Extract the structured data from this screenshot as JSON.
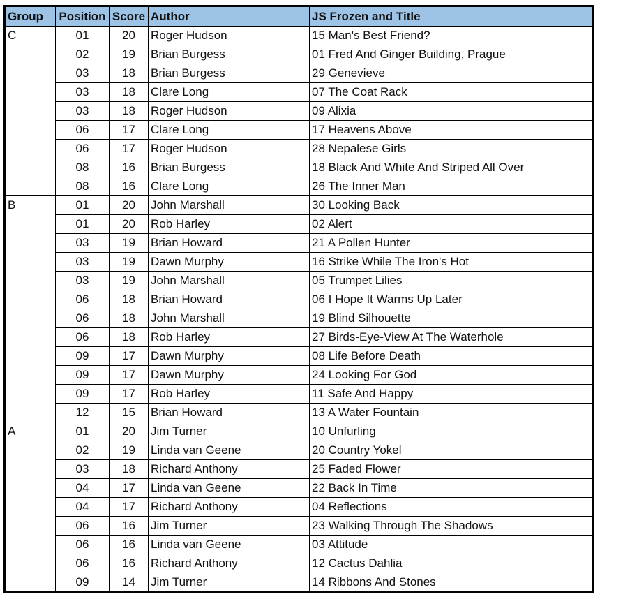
{
  "headers": [
    "Group",
    "Position",
    "Score",
    "Author",
    "JS Frozen and Title"
  ],
  "colors": {
    "header_bg": "#9dc3e6",
    "border": "#000000"
  },
  "groups": [
    {
      "group": "C",
      "rows": [
        [
          "01",
          "20",
          "Roger Hudson",
          "15 Man's Best Friend?"
        ],
        [
          "02",
          "19",
          "Brian Burgess",
          "01 Fred And Ginger Building, Prague"
        ],
        [
          "03",
          "18",
          "Brian Burgess",
          "29 Genevieve"
        ],
        [
          "03",
          "18",
          "Clare Long",
          "07 The Coat Rack"
        ],
        [
          "03",
          "18",
          "Roger Hudson",
          "09 Alixia"
        ],
        [
          "06",
          "17",
          "Clare Long",
          "17 Heavens Above"
        ],
        [
          "06",
          "17",
          "Roger Hudson",
          "28 Nepalese Girls"
        ],
        [
          "08",
          "16",
          "Brian Burgess",
          "18 Black And White And Striped All Over"
        ],
        [
          "08",
          "16",
          "Clare Long",
          "26 The Inner Man"
        ]
      ]
    },
    {
      "group": "B",
      "rows": [
        [
          "01",
          "20",
          "John Marshall",
          "30 Looking Back"
        ],
        [
          "01",
          "20",
          "Rob Harley",
          "02 Alert"
        ],
        [
          "03",
          "19",
          "Brian Howard",
          "21 A Pollen Hunter"
        ],
        [
          "03",
          "19",
          "Dawn Murphy",
          "16 Strike While The Iron's Hot"
        ],
        [
          "03",
          "19",
          "John Marshall",
          "05 Trumpet Lilies"
        ],
        [
          "06",
          "18",
          "Brian Howard",
          "06 I Hope It Warms Up Later"
        ],
        [
          "06",
          "18",
          "John Marshall",
          "19 Blind Silhouette"
        ],
        [
          "06",
          "18",
          "Rob Harley",
          "27 Birds-Eye-View At The Waterhole"
        ],
        [
          "09",
          "17",
          "Dawn Murphy",
          "08 Life Before Death"
        ],
        [
          "09",
          "17",
          "Dawn Murphy",
          "24 Looking For God"
        ],
        [
          "09",
          "17",
          "Rob Harley",
          "11 Safe And Happy"
        ],
        [
          "12",
          "15",
          "Brian Howard",
          "13 A Water Fountain"
        ]
      ]
    },
    {
      "group": "A",
      "rows": [
        [
          "01",
          "20",
          "Jim Turner",
          "10 Unfurling"
        ],
        [
          "02",
          "19",
          "Linda van Geene",
          "20 Country Yokel"
        ],
        [
          "03",
          "18",
          "Richard Anthony",
          "25 Faded Flower"
        ],
        [
          "04",
          "17",
          "Linda van Geene",
          "22 Back In Time"
        ],
        [
          "04",
          "17",
          "Richard Anthony",
          "04 Reflections"
        ],
        [
          "06",
          "16",
          "Jim Turner",
          "23 Walking Through The Shadows"
        ],
        [
          "06",
          "16",
          "Linda van Geene",
          "03 Attitude"
        ],
        [
          "06",
          "16",
          "Richard Anthony",
          "12 Cactus Dahlia"
        ],
        [
          "09",
          "14",
          "Jim Turner",
          "14 Ribbons And Stones"
        ]
      ]
    }
  ]
}
